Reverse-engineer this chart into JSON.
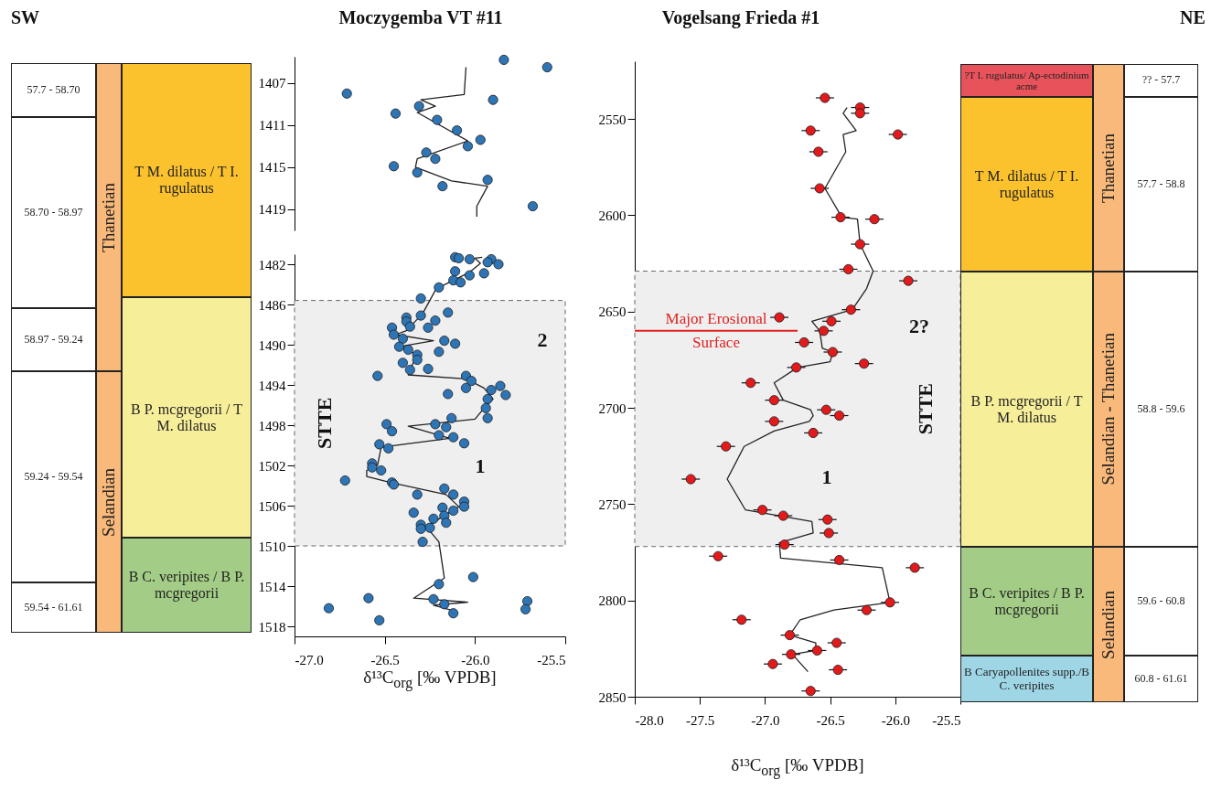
{
  "chart_data": [
    {
      "type": "other",
      "title": "SW",
      "annotations": [
        "57.7 - 58.70",
        "58.70 - 58.97",
        "58.97 - 59.24",
        "59.24 - 59.54",
        "59.54 - 61.61",
        "Thanetian",
        "Selandian",
        "T M. dilatus / T I. rugulatus",
        "B P. mcgregorii / T M. dilatus",
        "B C. veripites / B P. mcgregorii"
      ],
      "colors": [
        "#ffffff",
        "#ffffff",
        "#ffffff",
        "#ffffff",
        "#ffffff",
        "#f9b97a",
        "#f9b97a",
        "#fcc22e",
        "#f7ee9a",
        "#a3cd86"
      ]
    },
    {
      "type": "scatter",
      "title": "Moczygemba VT #11",
      "xlim": [
        -27,
        -25.5
      ],
      "ylim": [
        1421,
        1404.5
      ],
      "yticks": [
        1407,
        1411,
        1415,
        1419
      ],
      "tick_labels": "y",
      "series": [
        {
          "type": "line",
          "color": "#222222",
          "x": [
            -26.05,
            -26.06,
            -26.3,
            -26.22,
            -26.32,
            -26.04,
            -26.32,
            -26.33,
            -26.13,
            -25.93,
            -25.99,
            -25.99
          ],
          "values": [
            1405.5,
            1408.1,
            1408.6,
            1409.2,
            1409.8,
            1412.5,
            1414.2,
            1415.0,
            1416.3,
            1416.8,
            1418.7,
            1419.7
          ]
        },
        {
          "color": "#2e75b6",
          "marker": "circle",
          "x": [
            -25.84,
            -25.6,
            -26.71,
            -25.9,
            -26.31,
            -26.44,
            -26.21,
            -26.1,
            -25.97,
            -26.04,
            -26.27,
            -26.22,
            -26.45,
            -26.32,
            -25.93,
            -26.18,
            -25.68
          ],
          "values": [
            1404.8,
            1405.5,
            1408.0,
            1408.6,
            1409.2,
            1409.9,
            1410.5,
            1411.5,
            1412.4,
            1413.0,
            1413.6,
            1414.2,
            1414.9,
            1415.5,
            1416.2,
            1416.8,
            1418.7
          ]
        }
      ]
    },
    {
      "type": "scatter",
      "xlabel": "δ¹³C$_{org}$ [‰ VPDB]",
      "xlim": [
        -27,
        -25.5
      ],
      "xticks": [
        {
          "value": -27,
          "label": "-27.0"
        },
        {
          "value": -26.5,
          "label": "-26.5"
        },
        {
          "value": -26,
          "label": "-26.0"
        },
        {
          "value": -25.5,
          "label": "-25.5"
        }
      ],
      "ylim": [
        1519,
        1481
      ],
      "yticks": [
        1482,
        1486,
        1490,
        1494,
        1498,
        1502,
        1506,
        1510,
        1514,
        1518
      ],
      "bands": [
        {
          "axis": "y",
          "from": 1485.6,
          "to": 1510,
          "label": "STTE",
          "color": "#efefef"
        }
      ],
      "annotations": [
        "2",
        "1"
      ],
      "series": [
        {
          "type": "line",
          "color": "#222222",
          "x": [
            -25.96,
            -26.0,
            -25.97,
            -26.03,
            -26.2,
            -26.22,
            -26.29,
            -26.38,
            -26.44,
            -26.23,
            -26.42,
            -26.32,
            -26.35,
            -26.37,
            -26.05,
            -25.95,
            -25.9,
            -25.95,
            -26.0,
            -26.37,
            -26.14,
            -26.52,
            -26.54,
            -26.6,
            -26.6,
            -26.47,
            -26.16,
            -26.09,
            -26.27,
            -26.2,
            -26.17,
            -26.34,
            -26.04,
            -26.23,
            -26.13
          ],
          "values": [
            1481.3,
            1481.4,
            1481.9,
            1482.8,
            1484.3,
            1484.6,
            1486.9,
            1488.6,
            1489.0,
            1489.6,
            1490.2,
            1491.0,
            1492.1,
            1493.0,
            1493.4,
            1494.3,
            1495.4,
            1496.3,
            1497.4,
            1498.1,
            1499.3,
            1500.2,
            1502.0,
            1502.5,
            1503.1,
            1503.7,
            1504.9,
            1506.1,
            1508.1,
            1509.6,
            1513.2,
            1515.2,
            1515.6,
            1515.9,
            1516.4
          ]
        },
        {
          "color": "#2e75b6",
          "marker": "circle",
          "x": [
            -26.11,
            -26.09,
            -26.03,
            -25.91,
            -25.93,
            -25.87,
            -26.11,
            -26.03,
            -25.95,
            -26.12,
            -26.08,
            -26.2,
            -26.3,
            -26.15,
            -26.3,
            -26.38,
            -26.38,
            -26.22,
            -26.36,
            -26.26,
            -26.46,
            -26.45,
            -26.4,
            -26.17,
            -26.11,
            -26.42,
            -26.37,
            -26.2,
            -26.32,
            -26.32,
            -26.4,
            -26.26,
            -26.36,
            -26.54,
            -26.05,
            -26.02,
            -25.86,
            -26.05,
            -25.91,
            -25.83,
            -26.15,
            -25.93,
            -25.94,
            -25.93,
            -26.13,
            -26.49,
            -26.22,
            -26.16,
            -26.46,
            -26.2,
            -26.12,
            -26.06,
            -26.53,
            -26.48,
            -26.57,
            -26.57,
            -26.52,
            -26.72,
            -26.46,
            -26.45,
            -26.17,
            -26.32,
            -26.12,
            -26.06,
            -26.06,
            -26.18,
            -26.12,
            -26.34,
            -26.17,
            -26.23,
            -26.16,
            -26.3,
            -26.25,
            -26.3,
            -26.29,
            -26.01,
            -26.2,
            -26.59,
            -26.23,
            -25.71,
            -26.17,
            -26.81,
            -25.72,
            -26.12,
            -26.53
          ],
          "values": [
            1481.3,
            1481.4,
            1481.5,
            1481.5,
            1481.8,
            1482.0,
            1482.7,
            1483.1,
            1482.9,
            1483.6,
            1483.8,
            1484.3,
            1485.4,
            1486.8,
            1487.1,
            1487.3,
            1487.7,
            1487.6,
            1488.2,
            1488.3,
            1488.3,
            1489.0,
            1489.4,
            1489.6,
            1489.9,
            1490.2,
            1490.5,
            1490.7,
            1491.0,
            1491.5,
            1491.8,
            1492.4,
            1492.5,
            1493.1,
            1493.1,
            1493.6,
            1494.1,
            1494.3,
            1494.5,
            1495.0,
            1494.9,
            1495.4,
            1496.3,
            1497.3,
            1497.3,
            1497.9,
            1497.9,
            1498.2,
            1498.6,
            1499.0,
            1499.2,
            1499.8,
            1499.9,
            1500.3,
            1501.8,
            1502.2,
            1502.5,
            1503.5,
            1503.7,
            1503.9,
            1504.3,
            1504.9,
            1504.9,
            1505.6,
            1506.1,
            1506.2,
            1506.5,
            1506.7,
            1507.0,
            1507.3,
            1507.7,
            1507.9,
            1508.2,
            1508.3,
            1509.6,
            1513.1,
            1513.8,
            1515.2,
            1515.3,
            1515.5,
            1515.8,
            1516.2,
            1516.3,
            1516.7,
            1517.4
          ]
        }
      ]
    },
    {
      "type": "scatter",
      "title": "Vogelsang Frieda #1",
      "xlabel": "δ¹³C$_{org}$ [‰ VPDB]",
      "xlim": [
        -28,
        -25.5
      ],
      "xticks": [
        {
          "value": -28,
          "label": "-28.0"
        },
        {
          "value": -27.5,
          "label": "-27.5"
        },
        {
          "value": -27,
          "label": "-27.0"
        },
        {
          "value": -26.5,
          "label": "-26.5"
        },
        {
          "value": -26,
          "label": "-26.0"
        },
        {
          "value": -25.5,
          "label": "-25.5"
        }
      ],
      "ylim": [
        2850,
        2520
      ],
      "yticks": [
        2550,
        2600,
        2650,
        2700,
        2750,
        2800,
        2850
      ],
      "bands": [
        {
          "axis": "y",
          "from": 2629,
          "to": 2772,
          "label": "STTE",
          "color": "#efefef"
        }
      ],
      "ref_lines": [
        {
          "axis": "y",
          "value": 2660,
          "label": "Major Erosional Surface",
          "color": "#e02020"
        }
      ],
      "annotations": [
        "2?",
        "1"
      ],
      "series": [
        {
          "type": "line",
          "color": "#222222",
          "x": [
            -26.37,
            -26.4,
            -26.3,
            -26.4,
            -26.38,
            -26.54,
            -26.41,
            -26.29,
            -26.27,
            -26.17,
            -26.22,
            -26.33,
            -26.64,
            -26.58,
            -26.56,
            -26.48,
            -26.5,
            -26.75,
            -26.93,
            -26.86,
            -26.65,
            -26.63,
            -26.66,
            -26.93,
            -27.16,
            -27.29,
            -27.15,
            -26.64,
            -26.63,
            -26.89,
            -26.88,
            -26.1,
            -26.04,
            -26.47,
            -26.73,
            -26.81,
            -26.61,
            -26.61,
            -26.79,
            -26.67
          ],
          "values": [
            2544,
            2547,
            2556,
            2558,
            2567,
            2586,
            2601,
            2602,
            2615,
            2629,
            2638,
            2649,
            2655,
            2660,
            2669,
            2671,
            2676,
            2679,
            2687,
            2696,
            2701,
            2704,
            2707,
            2712,
            2720,
            2737,
            2753,
            2759,
            2765,
            2770,
            2778,
            2783,
            2801,
            2805,
            2810,
            2818,
            2822,
            2826,
            2828,
            2837
          ]
        },
        {
          "color": "#e31a1c",
          "marker": "circle",
          "x": [
            -26.54,
            -26.27,
            -26.27,
            -26.65,
            -25.98,
            -26.59,
            -26.58,
            -26.42,
            -26.16,
            -26.27,
            -26.36,
            -25.9,
            -26.34,
            -26.89,
            -26.49,
            -26.55,
            -26.7,
            -26.48,
            -26.24,
            -26.76,
            -27.11,
            -26.93,
            -26.53,
            -26.43,
            -26.93,
            -26.63,
            -27.3,
            -27.57,
            -27.02,
            -26.86,
            -26.52,
            -26.51,
            -26.85,
            -27.36,
            -26.43,
            -25.85,
            -26.04,
            -26.22,
            -27.18,
            -26.81,
            -26.45,
            -26.6,
            -26.8,
            -26.94,
            -26.44,
            -26.65
          ],
          "values": [
            2539,
            2544,
            2547,
            2556,
            2558,
            2567,
            2586,
            2601,
            2602,
            2615,
            2628,
            2634,
            2649,
            2653,
            2655,
            2660,
            2666,
            2671,
            2677,
            2679,
            2687,
            2696,
            2701,
            2704,
            2707,
            2713,
            2720,
            2737,
            2753,
            2756,
            2758,
            2765,
            2771,
            2777,
            2779,
            2783,
            2801,
            2805,
            2810,
            2818,
            2822,
            2826,
            2828,
            2833,
            2836,
            2847
          ],
          "xerrors": [
            0.07,
            0.07,
            0.07,
            0.07,
            0.07,
            0.07,
            0.07,
            0.07,
            0.07,
            0.07,
            0.07,
            0.07,
            0.07,
            0.07,
            0.07,
            0.07,
            0.07,
            0.07,
            0.07,
            0.07,
            0.07,
            0.07,
            0.07,
            0.07,
            0.07,
            0.07,
            0.07,
            0.07,
            0.07,
            0.07,
            0.07,
            0.07,
            0.07,
            0.07,
            0.07,
            0.07,
            0.07,
            0.07,
            0.07,
            0.07,
            0.07,
            0.07,
            0.07,
            0.07,
            0.07,
            0.07
          ]
        }
      ]
    },
    {
      "type": "other",
      "title": "NE",
      "annotations": [
        "?T I. rugulatus/ Ap-ectodinium acme",
        "T M. dilatus / T I. rugulatus",
        "B P. mcgregorii / T M. dilatus",
        "B C. veripites / B P. mcgregorii",
        "B Caryapollenites supp./B C. veripites",
        "Thanetian",
        "Selandian - Thanetian",
        "Selandian",
        "?? - 57.7",
        "57.7 - 58.8",
        "58.8 - 59.6",
        "59.6 - 60.8",
        "60.8 - 61.61"
      ],
      "colors": [
        "#e8525a",
        "#fcc22e",
        "#f7ee9a",
        "#a3cd86",
        "#9fd6e6",
        "#f9b97a",
        "#f9b97a",
        "#f9b97a",
        "#ffffff",
        "#ffffff",
        "#ffffff",
        "#ffffff",
        "#ffffff"
      ]
    }
  ]
}
